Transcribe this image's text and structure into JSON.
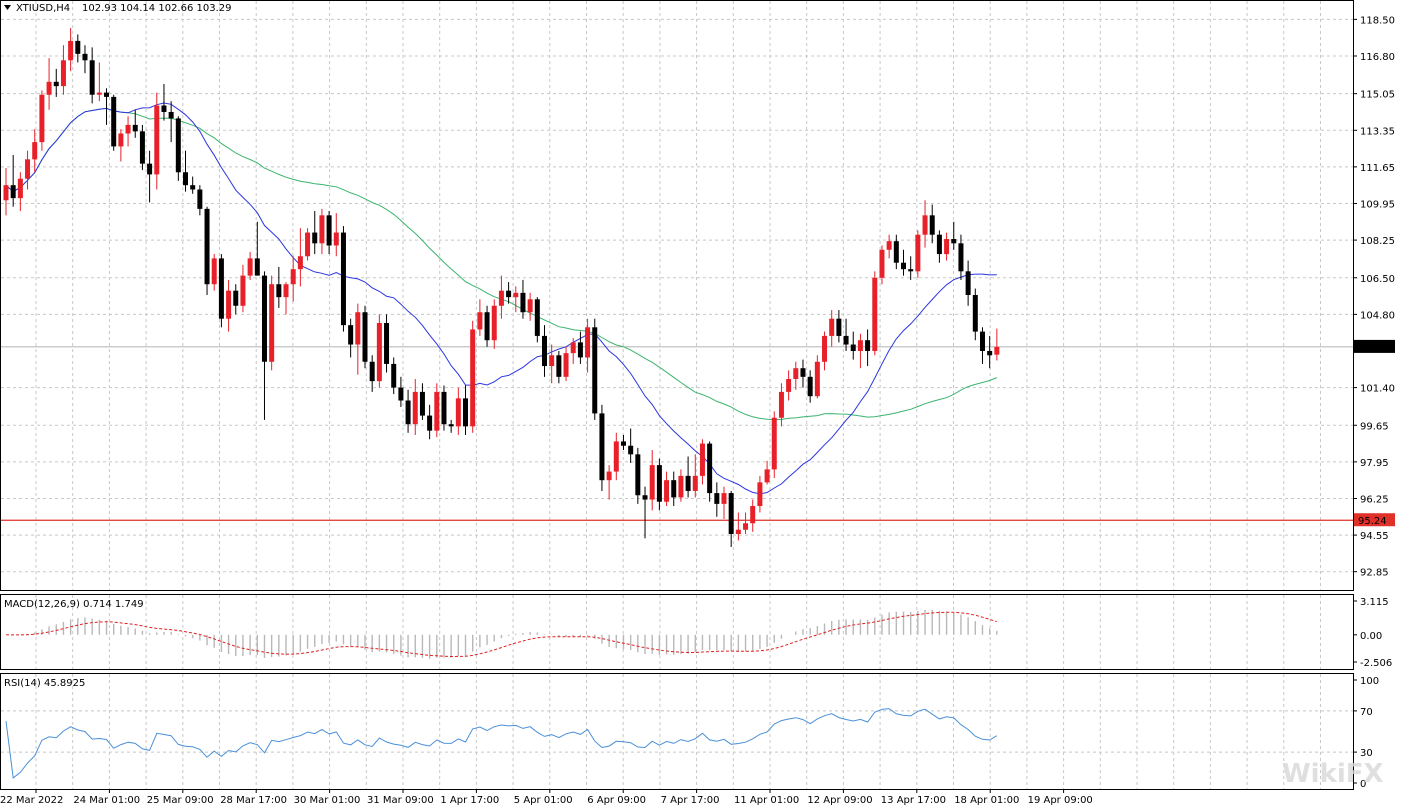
{
  "header": {
    "symbol": "XTIUSD,H4",
    "ohlc": "102.93 104.14 102.66 103.29"
  },
  "indicators": {
    "macd_label": "MACD(12,26,9) 0.714 1.749",
    "rsi_label": "RSI(14) 45.8925"
  },
  "price_axis": {
    "ticks": [
      "118.50",
      "116.80",
      "115.05",
      "113.35",
      "111.65",
      "109.95",
      "108.25",
      "106.50",
      "104.80",
      "101.40",
      "99.65",
      "97.95",
      "96.25",
      "94.55",
      "92.85"
    ],
    "current_price": "103.29",
    "hline_price": "95.24"
  },
  "macd_axis": {
    "ticks": [
      "3.115",
      "0.00",
      "-2.506"
    ]
  },
  "rsi_axis": {
    "ticks": [
      "100",
      "70",
      "30",
      "0"
    ]
  },
  "time_axis": {
    "labels": [
      "22 Mar 2022",
      "24 Mar 01:00",
      "25 Mar 09:00",
      "28 Mar 17:00",
      "30 Mar 01:00",
      "31 Mar 09:00",
      "1 Apr 17:00",
      "5 Apr 01:00",
      "6 Apr 09:00",
      "7 Apr 17:00",
      "11 Apr 01:00",
      "12 Apr 09:00",
      "13 Apr 17:00",
      "18 Apr 01:00",
      "19 Apr 09:00"
    ]
  },
  "watermark": "WikiFX",
  "colors": {
    "bull": "#e8202a",
    "bear": "#000000",
    "ma_fast": "#2b35e0",
    "ma_slow": "#3bb46e",
    "hline": "#e0302a",
    "macd_signal": "#e02020",
    "macd_hist": "#b8b8b8",
    "rsi": "#4a90d9",
    "grid": "#c8c8c8"
  },
  "chart_data": {
    "type": "candlestick",
    "ylim": [
      92.0,
      119.4
    ],
    "candles_ohlc": [
      [
        110.1,
        111.6,
        109.4,
        110.8
      ],
      [
        110.8,
        112.2,
        109.8,
        110.2
      ],
      [
        110.2,
        111.4,
        109.6,
        111.1
      ],
      [
        111.1,
        112.4,
        110.6,
        112.0
      ],
      [
        112.0,
        113.4,
        111.4,
        112.8
      ],
      [
        112.8,
        115.2,
        112.4,
        115.0
      ],
      [
        115.0,
        116.7,
        114.3,
        115.6
      ],
      [
        115.6,
        116.2,
        114.9,
        115.4
      ],
      [
        115.4,
        117.3,
        115.0,
        116.6
      ],
      [
        116.6,
        118.1,
        116.1,
        117.5
      ],
      [
        117.5,
        117.8,
        116.5,
        116.9
      ],
      [
        116.9,
        117.3,
        116.0,
        116.6
      ],
      [
        116.6,
        117.2,
        114.6,
        115.0
      ],
      [
        115.0,
        116.5,
        114.7,
        115.1
      ],
      [
        115.1,
        115.3,
        113.6,
        114.9
      ],
      [
        114.9,
        115.0,
        112.4,
        112.6
      ],
      [
        112.6,
        113.4,
        111.9,
        113.2
      ],
      [
        113.2,
        114.0,
        112.6,
        113.6
      ],
      [
        113.6,
        114.3,
        113.0,
        113.3
      ],
      [
        113.3,
        113.6,
        111.5,
        111.8
      ],
      [
        111.8,
        112.4,
        110.0,
        111.3
      ],
      [
        111.3,
        115.1,
        110.6,
        114.5
      ],
      [
        114.5,
        115.5,
        113.8,
        114.2
      ],
      [
        114.2,
        114.7,
        112.8,
        113.9
      ],
      [
        113.9,
        114.0,
        111.0,
        111.4
      ],
      [
        111.4,
        112.4,
        110.5,
        110.8
      ],
      [
        110.8,
        111.2,
        110.4,
        110.6
      ],
      [
        110.6,
        110.8,
        109.4,
        109.7
      ],
      [
        109.7,
        109.8,
        105.7,
        106.2
      ],
      [
        106.2,
        107.6,
        105.9,
        107.4
      ],
      [
        107.4,
        107.6,
        104.2,
        104.6
      ],
      [
        104.6,
        106.4,
        104.0,
        105.9
      ],
      [
        105.9,
        106.2,
        104.8,
        105.2
      ],
      [
        105.2,
        107.1,
        104.9,
        106.6
      ],
      [
        106.6,
        107.7,
        106.4,
        107.4
      ],
      [
        107.4,
        109.1,
        107.1,
        106.6
      ],
      [
        106.6,
        106.8,
        99.9,
        102.6
      ],
      [
        102.6,
        106.6,
        102.2,
        106.2
      ],
      [
        106.2,
        107.0,
        105.1,
        105.6
      ],
      [
        105.6,
        106.3,
        104.8,
        106.2
      ],
      [
        106.2,
        107.5,
        105.4,
        106.9
      ],
      [
        106.9,
        108.8,
        106.1,
        107.5
      ],
      [
        107.5,
        108.8,
        107.3,
        108.6
      ],
      [
        108.6,
        109.6,
        107.6,
        108.1
      ],
      [
        108.1,
        109.7,
        107.6,
        109.4
      ],
      [
        109.4,
        109.6,
        107.6,
        108.0
      ],
      [
        108.0,
        109.5,
        107.5,
        108.6
      ],
      [
        108.6,
        108.9,
        104.0,
        104.3
      ],
      [
        104.3,
        104.6,
        102.8,
        103.4
      ],
      [
        103.4,
        105.3,
        102.0,
        104.9
      ],
      [
        104.9,
        105.2,
        102.3,
        102.6
      ],
      [
        102.6,
        102.9,
        101.2,
        101.7
      ],
      [
        101.7,
        104.8,
        101.4,
        104.4
      ],
      [
        104.4,
        104.8,
        102.1,
        102.5
      ],
      [
        102.5,
        102.8,
        101.1,
        101.4
      ],
      [
        101.4,
        101.9,
        100.5,
        100.8
      ],
      [
        100.8,
        101.3,
        99.3,
        99.7
      ],
      [
        99.7,
        101.8,
        99.2,
        101.2
      ],
      [
        101.2,
        101.6,
        99.9,
        100.1
      ],
      [
        100.1,
        100.6,
        99.0,
        99.4
      ],
      [
        99.4,
        101.6,
        99.1,
        101.2
      ],
      [
        101.2,
        101.5,
        99.4,
        99.7
      ],
      [
        99.7,
        99.9,
        99.3,
        99.6
      ],
      [
        99.6,
        101.4,
        99.2,
        100.9
      ],
      [
        100.9,
        101.5,
        99.2,
        99.6
      ],
      [
        99.6,
        104.5,
        99.3,
        104.1
      ],
      [
        104.1,
        105.5,
        103.8,
        104.9
      ],
      [
        104.9,
        105.2,
        103.3,
        103.6
      ],
      [
        103.6,
        105.5,
        103.2,
        105.2
      ],
      [
        105.2,
        106.6,
        104.6,
        105.9
      ],
      [
        105.9,
        106.3,
        105.3,
        105.6
      ],
      [
        105.6,
        106.1,
        104.9,
        105.8
      ],
      [
        105.8,
        106.4,
        104.6,
        104.9
      ],
      [
        104.9,
        105.8,
        104.5,
        105.5
      ],
      [
        105.5,
        105.6,
        103.5,
        103.8
      ],
      [
        103.8,
        104.3,
        101.9,
        102.4
      ],
      [
        102.4,
        103.4,
        101.6,
        102.9
      ],
      [
        102.9,
        103.1,
        101.6,
        101.9
      ],
      [
        101.9,
        103.3,
        101.7,
        103.0
      ],
      [
        103.0,
        103.7,
        102.5,
        103.5
      ],
      [
        103.5,
        104.0,
        102.5,
        102.8
      ],
      [
        102.8,
        104.6,
        102.1,
        104.2
      ],
      [
        104.2,
        104.6,
        99.9,
        100.2
      ],
      [
        100.2,
        100.6,
        96.6,
        97.1
      ],
      [
        97.1,
        97.8,
        96.2,
        97.5
      ],
      [
        97.5,
        99.3,
        97.1,
        98.9
      ],
      [
        98.9,
        99.2,
        98.5,
        98.7
      ],
      [
        98.7,
        99.5,
        97.9,
        98.3
      ],
      [
        98.3,
        98.6,
        96.0,
        96.4
      ],
      [
        96.4,
        96.8,
        94.4,
        96.2
      ],
      [
        96.2,
        98.5,
        95.7,
        97.8
      ],
      [
        97.8,
        98.1,
        95.7,
        96.1
      ],
      [
        96.1,
        97.5,
        95.9,
        97.1
      ],
      [
        97.1,
        97.5,
        95.9,
        96.3
      ],
      [
        96.3,
        97.6,
        96.1,
        97.3
      ],
      [
        97.3,
        98.2,
        96.3,
        96.6
      ],
      [
        96.6,
        98.3,
        96.3,
        97.3
      ],
      [
        97.3,
        99.0,
        96.9,
        98.8
      ],
      [
        98.8,
        98.9,
        96.1,
        96.5
      ],
      [
        96.5,
        97.0,
        95.4,
        96.0
      ],
      [
        96.0,
        96.8,
        95.3,
        96.5
      ],
      [
        96.5,
        96.6,
        94.0,
        94.6
      ],
      [
        94.6,
        95.6,
        94.3,
        94.8
      ],
      [
        94.8,
        95.6,
        94.6,
        95.1
      ],
      [
        95.1,
        96.2,
        94.7,
        95.9
      ],
      [
        95.9,
        97.3,
        95.6,
        97.0
      ],
      [
        97.0,
        98.0,
        96.9,
        97.6
      ],
      [
        97.6,
        100.3,
        97.2,
        100.0
      ],
      [
        100.0,
        101.6,
        99.6,
        101.2
      ],
      [
        101.2,
        102.2,
        100.8,
        101.8
      ],
      [
        101.8,
        102.6,
        101.3,
        102.3
      ],
      [
        102.3,
        102.7,
        101.4,
        101.9
      ],
      [
        101.9,
        102.2,
        100.7,
        101.0
      ],
      [
        101.0,
        102.9,
        100.9,
        102.6
      ],
      [
        102.6,
        104.0,
        102.2,
        103.8
      ],
      [
        103.8,
        105.0,
        103.3,
        104.6
      ],
      [
        104.6,
        105.0,
        103.5,
        103.8
      ],
      [
        103.8,
        104.6,
        103.1,
        103.4
      ],
      [
        103.4,
        104.0,
        102.7,
        103.1
      ],
      [
        103.1,
        103.9,
        102.3,
        103.6
      ],
      [
        103.6,
        104.1,
        102.4,
        103.1
      ],
      [
        103.1,
        106.8,
        102.9,
        106.5
      ],
      [
        106.5,
        108.0,
        106.2,
        107.8
      ],
      [
        107.8,
        108.5,
        107.4,
        108.2
      ],
      [
        108.2,
        108.5,
        106.9,
        107.2
      ],
      [
        107.2,
        107.8,
        106.6,
        106.9
      ],
      [
        106.9,
        107.5,
        106.4,
        106.8
      ],
      [
        106.8,
        108.7,
        106.5,
        108.5
      ],
      [
        108.5,
        110.1,
        107.9,
        109.4
      ],
      [
        109.4,
        109.9,
        108.1,
        108.5
      ],
      [
        108.5,
        108.7,
        107.2,
        107.6
      ],
      [
        107.6,
        108.6,
        107.3,
        108.3
      ],
      [
        108.3,
        109.1,
        107.8,
        108.1
      ],
      [
        108.1,
        108.5,
        106.4,
        106.8
      ],
      [
        106.8,
        107.3,
        105.2,
        105.7
      ],
      [
        105.7,
        106.0,
        103.6,
        104.0
      ],
      [
        104.0,
        104.2,
        102.5,
        103.1
      ],
      [
        103.1,
        103.8,
        102.3,
        102.9
      ],
      [
        102.93,
        104.14,
        102.66,
        103.29
      ]
    ]
  }
}
